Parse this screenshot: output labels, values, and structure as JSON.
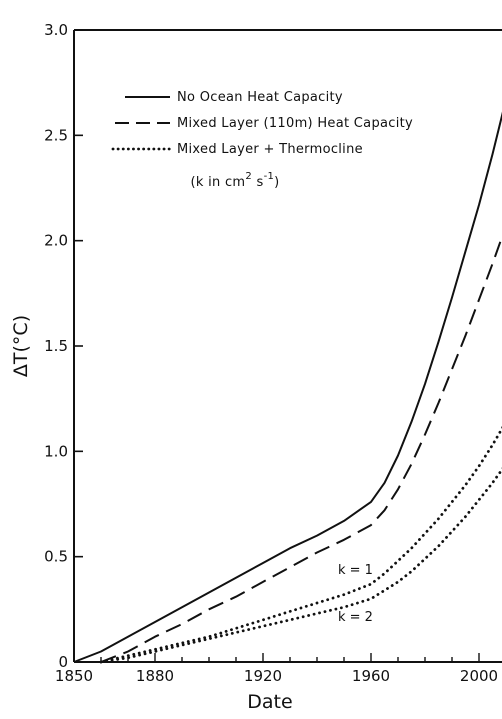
{
  "chart_data": {
    "type": "line",
    "xlabel": "Date",
    "ylabel": "ΔT(°C)",
    "xlim": [
      1850,
      2010
    ],
    "ylim": [
      0,
      3.0
    ],
    "xticks": [
      1850,
      1880,
      1920,
      1960,
      2000
    ],
    "yticks": [
      0,
      0.5,
      1.0,
      1.5,
      2.0,
      2.5,
      3.0
    ],
    "xtick_labels": [
      "1850",
      "1880",
      "1920",
      "1960",
      "2000"
    ],
    "ytick_labels": [
      "0",
      "0.5",
      "1.0",
      "1.5",
      "2.0",
      "2.5",
      "3.0"
    ],
    "grid": false,
    "legend": {
      "position": "top-left",
      "entries": [
        "No Ocean Heat Capacity",
        "Mixed Layer (110m) Heat Capacity",
        "Mixed Layer + Thermocline"
      ],
      "note_prefix": "(k in cm",
      "note_exp1": "2",
      "note_mid": " s",
      "note_exp2": "-1",
      "note_suffix": ")"
    },
    "annotations": [
      "k = 1",
      "k = 2"
    ],
    "series": [
      {
        "name": "No Ocean Heat Capacity",
        "style": "solid",
        "x": [
          1850,
          1860,
          1870,
          1880,
          1890,
          1900,
          1910,
          1920,
          1930,
          1940,
          1950,
          1960,
          1965,
          1970,
          1975,
          1980,
          1985,
          1990,
          1995,
          2000,
          2005,
          2010
        ],
        "y": [
          0.0,
          0.05,
          0.12,
          0.19,
          0.26,
          0.33,
          0.4,
          0.47,
          0.54,
          0.6,
          0.67,
          0.76,
          0.85,
          0.98,
          1.14,
          1.32,
          1.52,
          1.73,
          1.95,
          2.17,
          2.41,
          2.67
        ]
      },
      {
        "name": "Mixed Layer (110m) Heat Capacity",
        "style": "dashed",
        "x": [
          1860,
          1870,
          1880,
          1890,
          1900,
          1910,
          1920,
          1930,
          1940,
          1950,
          1960,
          1965,
          1970,
          1975,
          1980,
          1985,
          1990,
          1995,
          2000,
          2005,
          2010
        ],
        "y": [
          0.0,
          0.05,
          0.12,
          0.18,
          0.25,
          0.31,
          0.38,
          0.45,
          0.52,
          0.58,
          0.65,
          0.72,
          0.82,
          0.94,
          1.08,
          1.23,
          1.39,
          1.55,
          1.72,
          1.89,
          2.07
        ]
      },
      {
        "name": "Mixed Layer + Thermocline k = 1",
        "style": "dotted",
        "x": [
          1860,
          1870,
          1880,
          1890,
          1900,
          1910,
          1920,
          1930,
          1940,
          1950,
          1960,
          1965,
          1970,
          1975,
          1980,
          1985,
          1990,
          1995,
          2000,
          2005,
          2010
        ],
        "y": [
          0.0,
          0.03,
          0.06,
          0.09,
          0.12,
          0.16,
          0.2,
          0.24,
          0.28,
          0.32,
          0.37,
          0.42,
          0.48,
          0.54,
          0.61,
          0.68,
          0.76,
          0.84,
          0.93,
          1.03,
          1.14
        ]
      },
      {
        "name": "Mixed Layer + Thermocline k = 2",
        "style": "dotted",
        "x": [
          1860,
          1870,
          1880,
          1890,
          1900,
          1910,
          1920,
          1930,
          1940,
          1950,
          1960,
          1965,
          1970,
          1975,
          1980,
          1985,
          1990,
          1995,
          2000,
          2005,
          2010
        ],
        "y": [
          0.0,
          0.02,
          0.05,
          0.08,
          0.11,
          0.14,
          0.17,
          0.2,
          0.23,
          0.26,
          0.3,
          0.34,
          0.38,
          0.43,
          0.49,
          0.55,
          0.62,
          0.69,
          0.77,
          0.85,
          0.94
        ]
      }
    ]
  }
}
